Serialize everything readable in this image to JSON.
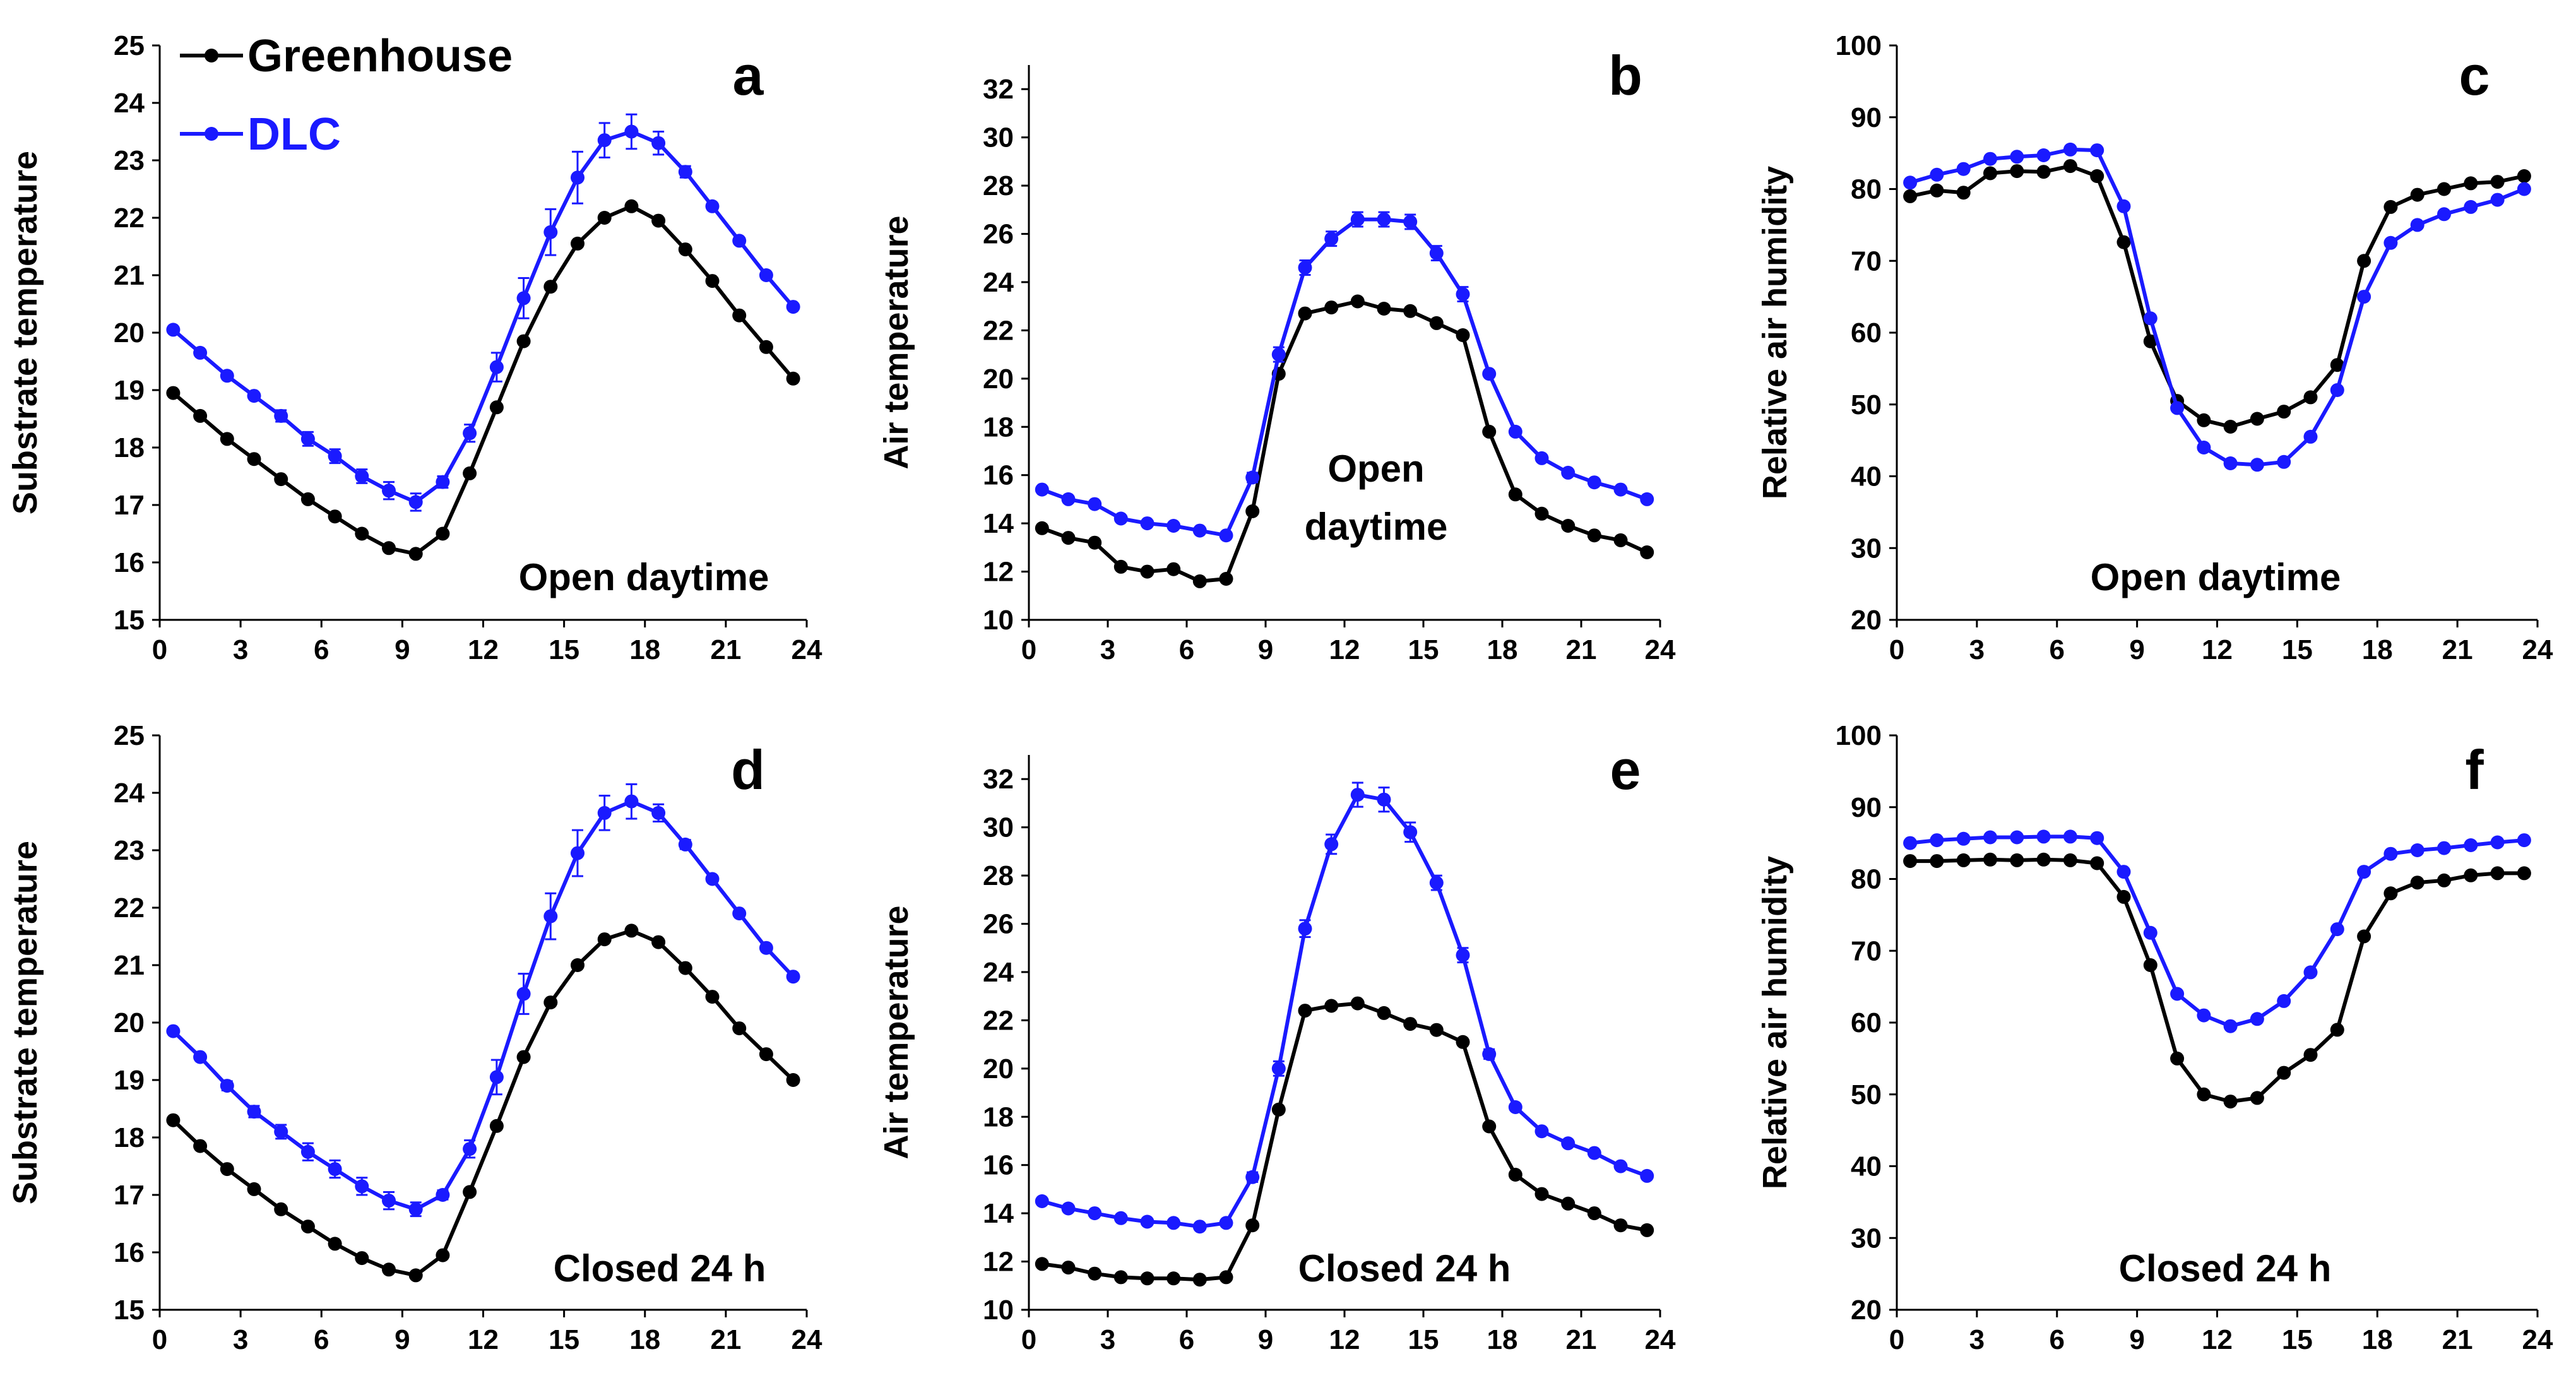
{
  "colors": {
    "greenhouse": "#000000",
    "dlc": "#1a1aff"
  },
  "legend": {
    "greenhouse": "Greenhouse",
    "dlc": "DLC"
  },
  "chart_data": [
    {
      "type": "line",
      "letter": "a",
      "annotation": [
        "Open daytime"
      ],
      "ylabel": "Substrate temperature",
      "xlabel": "",
      "xlim": [
        0,
        24
      ],
      "xticks": [
        0,
        3,
        6,
        9,
        12,
        15,
        18,
        21,
        24
      ],
      "ylim": [
        15,
        25
      ],
      "yticks": [
        15,
        16,
        17,
        18,
        19,
        20,
        21,
        22,
        23,
        24,
        25
      ],
      "x": [
        0.5,
        1.5,
        2.5,
        3.5,
        4.5,
        5.5,
        6.5,
        7.5,
        8.5,
        9.5,
        10.5,
        11.5,
        12.5,
        13.5,
        14.5,
        15.5,
        16.5,
        17.5,
        18.5,
        19.5,
        20.5,
        21.5,
        22.5,
        23.5
      ],
      "series": [
        {
          "name": "Greenhouse",
          "values": [
            18.95,
            18.55,
            18.15,
            17.8,
            17.45,
            17.1,
            16.8,
            16.5,
            16.25,
            16.15,
            16.5,
            17.55,
            18.7,
            19.85,
            20.8,
            21.55,
            22.0,
            22.2,
            21.95,
            21.45,
            20.9,
            20.3,
            19.75,
            19.2
          ]
        },
        {
          "name": "DLC",
          "values": [
            20.05,
            19.65,
            19.25,
            18.9,
            18.55,
            18.15,
            17.85,
            17.5,
            17.25,
            17.05,
            17.4,
            18.25,
            19.4,
            20.6,
            21.75,
            22.7,
            23.35,
            23.5,
            23.3,
            22.8,
            22.2,
            21.6,
            21.0,
            20.45
          ],
          "err": [
            0.05,
            0.05,
            0.05,
            0.05,
            0.1,
            0.12,
            0.12,
            0.12,
            0.15,
            0.15,
            0.1,
            0.15,
            0.25,
            0.35,
            0.4,
            0.45,
            0.3,
            0.3,
            0.2,
            0.1,
            0.05,
            0.05,
            0.05,
            0.05
          ]
        }
      ]
    },
    {
      "type": "line",
      "letter": "b",
      "annotation": [
        "Open",
        "daytime"
      ],
      "ylabel": "Air temperature",
      "xlabel": "",
      "xlim": [
        0,
        24
      ],
      "xticks": [
        0,
        3,
        6,
        9,
        12,
        15,
        18,
        21,
        24
      ],
      "ylim": [
        10,
        33
      ],
      "yticks": [
        10,
        12,
        14,
        16,
        18,
        20,
        22,
        24,
        26,
        28,
        30,
        32
      ],
      "x": [
        0.5,
        1.5,
        2.5,
        3.5,
        4.5,
        5.5,
        6.5,
        7.5,
        8.5,
        9.5,
        10.5,
        11.5,
        12.5,
        13.5,
        14.5,
        15.5,
        16.5,
        17.5,
        18.5,
        19.5,
        20.5,
        21.5,
        22.5,
        23.5
      ],
      "series": [
        {
          "name": "Greenhouse",
          "values": [
            13.8,
            13.4,
            13.2,
            12.2,
            12.0,
            12.1,
            11.6,
            11.7,
            14.5,
            20.2,
            22.7,
            22.95,
            23.2,
            22.9,
            22.8,
            22.3,
            21.8,
            17.8,
            15.2,
            14.4,
            13.9,
            13.5,
            13.3,
            12.8
          ]
        },
        {
          "name": "DLC",
          "values": [
            15.4,
            15.0,
            14.8,
            14.2,
            14.0,
            13.9,
            13.7,
            13.5,
            15.9,
            21.0,
            24.6,
            25.8,
            26.6,
            26.6,
            26.5,
            25.2,
            23.5,
            20.2,
            17.8,
            16.7,
            16.1,
            15.7,
            15.4,
            15.0
          ],
          "err": [
            0.05,
            0.05,
            0.05,
            0.05,
            0.05,
            0.05,
            0.05,
            0.05,
            0.2,
            0.3,
            0.3,
            0.3,
            0.3,
            0.3,
            0.3,
            0.3,
            0.3,
            0.1,
            0.05,
            0.05,
            0.05,
            0.05,
            0.05,
            0.05
          ]
        }
      ]
    },
    {
      "type": "line",
      "letter": "c",
      "annotation": [
        "Open daytime"
      ],
      "ylabel": "Relative  air humidity",
      "xlabel": "",
      "xlim": [
        0,
        24
      ],
      "xticks": [
        0,
        3,
        6,
        9,
        12,
        15,
        18,
        21,
        24
      ],
      "ylim": [
        20,
        100
      ],
      "yticks": [
        20,
        30,
        40,
        50,
        60,
        70,
        80,
        90,
        100
      ],
      "x": [
        0.5,
        1.5,
        2.5,
        3.5,
        4.5,
        5.5,
        6.5,
        7.5,
        8.5,
        9.5,
        10.5,
        11.5,
        12.5,
        13.5,
        14.5,
        15.5,
        16.5,
        17.5,
        18.5,
        19.5,
        20.5,
        21.5,
        22.5,
        23.5
      ],
      "series": [
        {
          "name": "Greenhouse",
          "values": [
            79.0,
            79.8,
            79.5,
            82.2,
            82.5,
            82.4,
            83.2,
            81.8,
            72.6,
            58.8,
            50.5,
            47.8,
            46.9,
            48.0,
            49.0,
            51.0,
            55.5,
            70.0,
            77.5,
            79.2,
            80.0,
            80.8,
            81.0,
            81.8
          ]
        },
        {
          "name": "DLC",
          "values": [
            80.9,
            82.0,
            82.8,
            84.2,
            84.5,
            84.7,
            85.5,
            85.4,
            77.6,
            62.0,
            49.5,
            44.0,
            41.8,
            41.6,
            42.0,
            45.5,
            52.0,
            65.0,
            72.5,
            75.0,
            76.5,
            77.5,
            78.5,
            80.0
          ]
        }
      ]
    },
    {
      "type": "line",
      "letter": "d",
      "annotation": [
        "Closed 24 h"
      ],
      "ylabel": "Substrate temperature",
      "xlabel": "",
      "xlim": [
        0,
        24
      ],
      "xticks": [
        0,
        3,
        6,
        9,
        12,
        15,
        18,
        21,
        24
      ],
      "ylim": [
        15,
        25
      ],
      "yticks": [
        15,
        16,
        17,
        18,
        19,
        20,
        21,
        22,
        23,
        24,
        25
      ],
      "x": [
        0.5,
        1.5,
        2.5,
        3.5,
        4.5,
        5.5,
        6.5,
        7.5,
        8.5,
        9.5,
        10.5,
        11.5,
        12.5,
        13.5,
        14.5,
        15.5,
        16.5,
        17.5,
        18.5,
        19.5,
        20.5,
        21.5,
        22.5,
        23.5
      ],
      "series": [
        {
          "name": "Greenhouse",
          "values": [
            18.3,
            17.85,
            17.45,
            17.1,
            16.75,
            16.45,
            16.15,
            15.9,
            15.7,
            15.6,
            15.95,
            17.05,
            18.2,
            19.4,
            20.35,
            21.0,
            21.45,
            21.6,
            21.4,
            20.95,
            20.45,
            19.9,
            19.45,
            19.0
          ]
        },
        {
          "name": "DLC",
          "values": [
            19.85,
            19.4,
            18.9,
            18.45,
            18.1,
            17.75,
            17.45,
            17.15,
            16.9,
            16.75,
            17.0,
            17.8,
            19.05,
            20.5,
            21.85,
            22.95,
            23.65,
            23.85,
            23.65,
            23.1,
            22.5,
            21.9,
            21.3,
            20.8
          ],
          "err": [
            0.05,
            0.05,
            0.08,
            0.1,
            0.12,
            0.15,
            0.15,
            0.15,
            0.15,
            0.12,
            0.08,
            0.15,
            0.3,
            0.35,
            0.4,
            0.4,
            0.3,
            0.3,
            0.15,
            0.08,
            0.05,
            0.05,
            0.05,
            0.05
          ]
        }
      ]
    },
    {
      "type": "line",
      "letter": "e",
      "annotation": [
        "Closed 24 h"
      ],
      "ylabel": "Air temperature",
      "xlabel": "",
      "xlim": [
        0,
        24
      ],
      "xticks": [
        0,
        3,
        6,
        9,
        12,
        15,
        18,
        21,
        24
      ],
      "ylim": [
        10,
        33
      ],
      "yticks": [
        10,
        12,
        14,
        16,
        18,
        20,
        22,
        24,
        26,
        28,
        30,
        32
      ],
      "x": [
        0.5,
        1.5,
        2.5,
        3.5,
        4.5,
        5.5,
        6.5,
        7.5,
        8.5,
        9.5,
        10.5,
        11.5,
        12.5,
        13.5,
        14.5,
        15.5,
        16.5,
        17.5,
        18.5,
        19.5,
        20.5,
        21.5,
        22.5,
        23.5
      ],
      "series": [
        {
          "name": "Greenhouse",
          "values": [
            11.9,
            11.75,
            11.5,
            11.35,
            11.3,
            11.3,
            11.25,
            11.35,
            13.5,
            18.3,
            22.4,
            22.6,
            22.7,
            22.3,
            21.85,
            21.6,
            21.1,
            17.6,
            15.6,
            14.8,
            14.4,
            14.0,
            13.5,
            13.3
          ]
        },
        {
          "name": "DLC",
          "values": [
            14.5,
            14.2,
            14.0,
            13.8,
            13.65,
            13.6,
            13.45,
            13.6,
            15.5,
            20.0,
            25.8,
            29.3,
            31.35,
            31.15,
            29.8,
            27.7,
            24.7,
            20.6,
            18.4,
            17.4,
            16.9,
            16.5,
            15.95,
            15.55
          ],
          "err": [
            0.05,
            0.05,
            0.05,
            0.05,
            0.05,
            0.05,
            0.05,
            0.05,
            0.2,
            0.3,
            0.35,
            0.4,
            0.5,
            0.5,
            0.4,
            0.3,
            0.3,
            0.2,
            0.1,
            0.05,
            0.05,
            0.05,
            0.05,
            0.05
          ]
        }
      ]
    },
    {
      "type": "line",
      "letter": "f",
      "annotation": [
        "Closed 24 h"
      ],
      "ylabel": "Relative  air humidity",
      "xlabel": "",
      "xlim": [
        0,
        24
      ],
      "xticks": [
        0,
        3,
        6,
        9,
        12,
        15,
        18,
        21,
        24
      ],
      "ylim": [
        20,
        100
      ],
      "yticks": [
        20,
        30,
        40,
        50,
        60,
        70,
        80,
        90,
        100
      ],
      "x": [
        0.5,
        1.5,
        2.5,
        3.5,
        4.5,
        5.5,
        6.5,
        7.5,
        8.5,
        9.5,
        10.5,
        11.5,
        12.5,
        13.5,
        14.5,
        15.5,
        16.5,
        17.5,
        18.5,
        19.5,
        20.5,
        21.5,
        22.5,
        23.5
      ],
      "series": [
        {
          "name": "Greenhouse",
          "values": [
            82.5,
            82.5,
            82.6,
            82.7,
            82.6,
            82.7,
            82.6,
            82.2,
            77.5,
            68.0,
            55.0,
            50.0,
            49.0,
            49.5,
            53.0,
            55.5,
            59.0,
            72.0,
            78.0,
            79.5,
            79.8,
            80.5,
            80.8,
            80.8
          ]
        },
        {
          "name": "DLC",
          "values": [
            85.0,
            85.4,
            85.6,
            85.8,
            85.8,
            85.9,
            85.9,
            85.7,
            81.0,
            72.5,
            64.0,
            61.0,
            59.5,
            60.5,
            63.0,
            67.0,
            73.0,
            81.0,
            83.5,
            84.0,
            84.3,
            84.7,
            85.1,
            85.4
          ]
        }
      ]
    }
  ]
}
